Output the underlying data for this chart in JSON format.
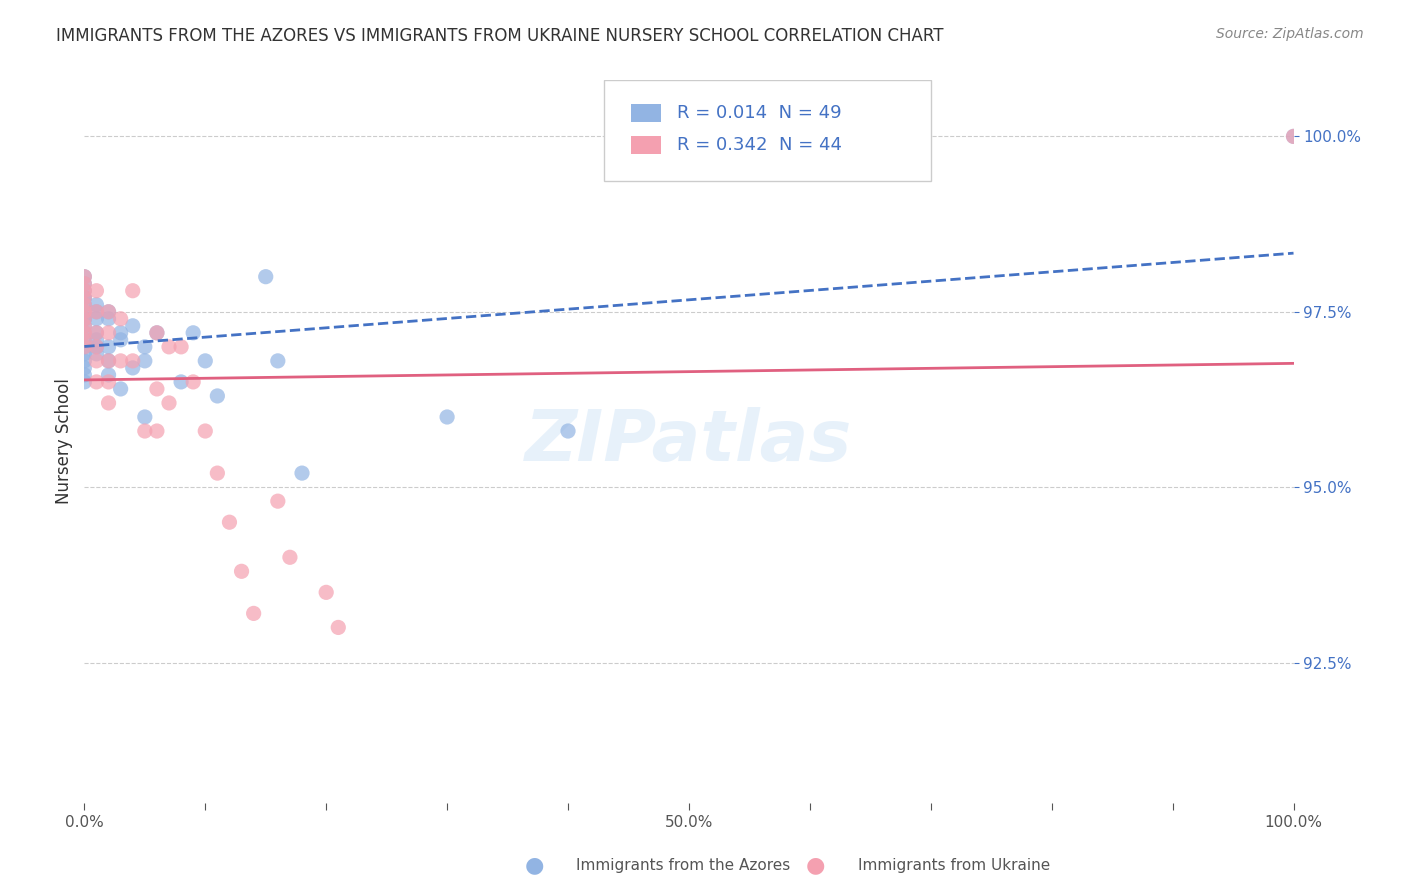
{
  "title": "IMMIGRANTS FROM THE AZORES VS IMMIGRANTS FROM UKRAINE NURSERY SCHOOL CORRELATION CHART",
  "source": "Source: ZipAtlas.com",
  "ylabel": "Nursery School",
  "xlabel": "",
  "xlim": [
    0.0,
    1.0
  ],
  "ylim": [
    0.905,
    1.008
  ],
  "yticks": [
    0.925,
    0.95,
    0.975,
    1.0
  ],
  "ytick_labels": [
    "92.5%",
    "95.0%",
    "97.5%",
    "100.0%"
  ],
  "xticks": [
    0.0,
    0.1,
    0.2,
    0.3,
    0.4,
    0.5,
    0.6,
    0.7,
    0.8,
    0.9,
    1.0
  ],
  "xtick_labels": [
    "0.0%",
    "",
    "",
    "",
    "",
    "50.0%",
    "",
    "",
    "",
    "",
    "100.0%"
  ],
  "legend_labels": [
    "Immigrants from the Azores",
    "Immigrants from Ukraine"
  ],
  "azores_color": "#92b4e3",
  "ukraine_color": "#f4a0b0",
  "azores_line_color": "#4472c4",
  "ukraine_line_color": "#e06080",
  "R_azores": 0.014,
  "N_azores": 49,
  "R_ukraine": 0.342,
  "N_ukraine": 44,
  "watermark": "ZIPatlas",
  "background_color": "#ffffff",
  "azores_x": [
    0.0,
    0.0,
    0.0,
    0.0,
    0.0,
    0.0,
    0.0,
    0.0,
    0.0,
    0.0,
    0.0,
    0.0,
    0.0,
    0.0,
    0.0,
    0.0,
    0.0,
    0.0,
    0.01,
    0.01,
    0.01,
    0.01,
    0.01,
    0.01,
    0.01,
    0.02,
    0.02,
    0.02,
    0.02,
    0.02,
    0.03,
    0.03,
    0.03,
    0.04,
    0.04,
    0.05,
    0.05,
    0.05,
    0.06,
    0.08,
    0.09,
    0.1,
    0.11,
    0.15,
    0.16,
    0.18,
    0.3,
    0.4,
    1.0
  ],
  "azores_y": [
    0.98,
    0.979,
    0.978,
    0.977,
    0.977,
    0.976,
    0.975,
    0.974,
    0.974,
    0.973,
    0.972,
    0.971,
    0.97,
    0.969,
    0.968,
    0.967,
    0.966,
    0.965,
    0.976,
    0.975,
    0.974,
    0.972,
    0.971,
    0.97,
    0.969,
    0.975,
    0.974,
    0.97,
    0.968,
    0.966,
    0.972,
    0.971,
    0.964,
    0.973,
    0.967,
    0.97,
    0.968,
    0.96,
    0.972,
    0.965,
    0.972,
    0.968,
    0.963,
    0.98,
    0.968,
    0.952,
    0.96,
    0.958,
    1.0
  ],
  "ukraine_x": [
    0.0,
    0.0,
    0.0,
    0.0,
    0.0,
    0.0,
    0.0,
    0.0,
    0.0,
    0.0,
    0.0,
    0.01,
    0.01,
    0.01,
    0.01,
    0.01,
    0.01,
    0.02,
    0.02,
    0.02,
    0.02,
    0.02,
    0.03,
    0.03,
    0.04,
    0.04,
    0.05,
    0.06,
    0.06,
    0.06,
    0.07,
    0.07,
    0.08,
    0.09,
    0.1,
    0.11,
    0.12,
    0.13,
    0.14,
    0.16,
    0.17,
    0.2,
    0.21,
    1.0
  ],
  "ukraine_y": [
    0.98,
    0.979,
    0.978,
    0.977,
    0.976,
    0.975,
    0.974,
    0.973,
    0.972,
    0.971,
    0.97,
    0.978,
    0.975,
    0.972,
    0.97,
    0.968,
    0.965,
    0.975,
    0.972,
    0.968,
    0.965,
    0.962,
    0.974,
    0.968,
    0.978,
    0.968,
    0.958,
    0.972,
    0.964,
    0.958,
    0.97,
    0.962,
    0.97,
    0.965,
    0.958,
    0.952,
    0.945,
    0.938,
    0.932,
    0.948,
    0.94,
    0.935,
    0.93,
    1.0
  ]
}
